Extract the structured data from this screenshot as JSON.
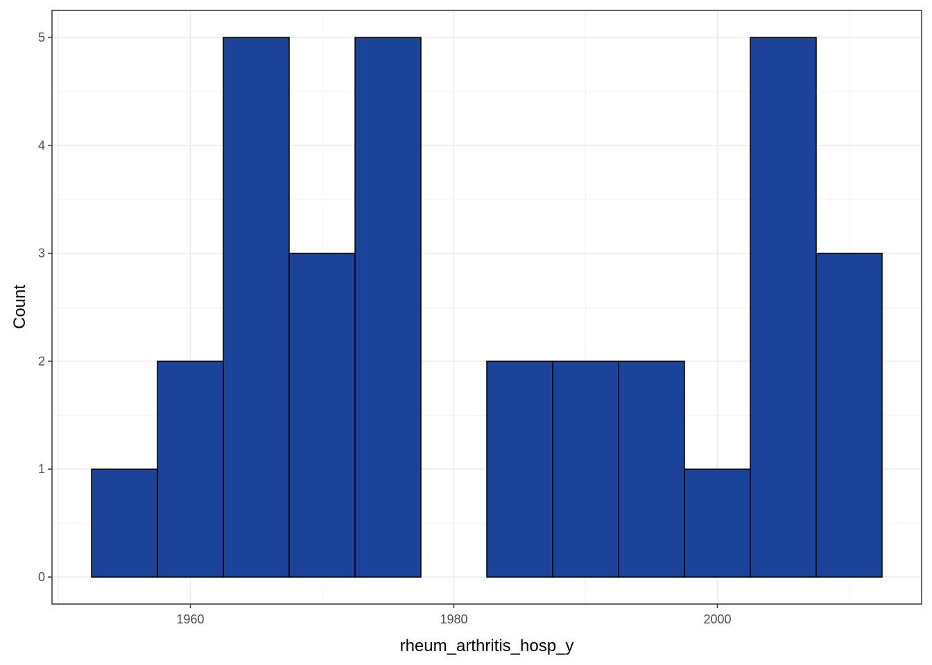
{
  "chart_data": {
    "type": "histogram",
    "x_label": "rheum_arthritis_hosp_y",
    "y_label": "Count",
    "bins": [
      1952.5,
      1957.5,
      1962.5,
      1967.5,
      1972.5,
      1977.5,
      1982.5,
      1987.5,
      1992.5,
      1997.5,
      2002.5,
      2007.5,
      2012.5
    ],
    "values": [
      1,
      2,
      5,
      3,
      5,
      0,
      2,
      2,
      2,
      1,
      5,
      3
    ],
    "color": "#1a4399",
    "edge_color": "#000000",
    "xlim": [
      1949.5,
      2015.5
    ],
    "xticks": [
      1960,
      1980,
      2000
    ],
    "ylim": [
      -0.25,
      5.25
    ],
    "yticks": [
      0,
      1,
      2,
      3,
      4,
      5
    ],
    "grid": true
  }
}
